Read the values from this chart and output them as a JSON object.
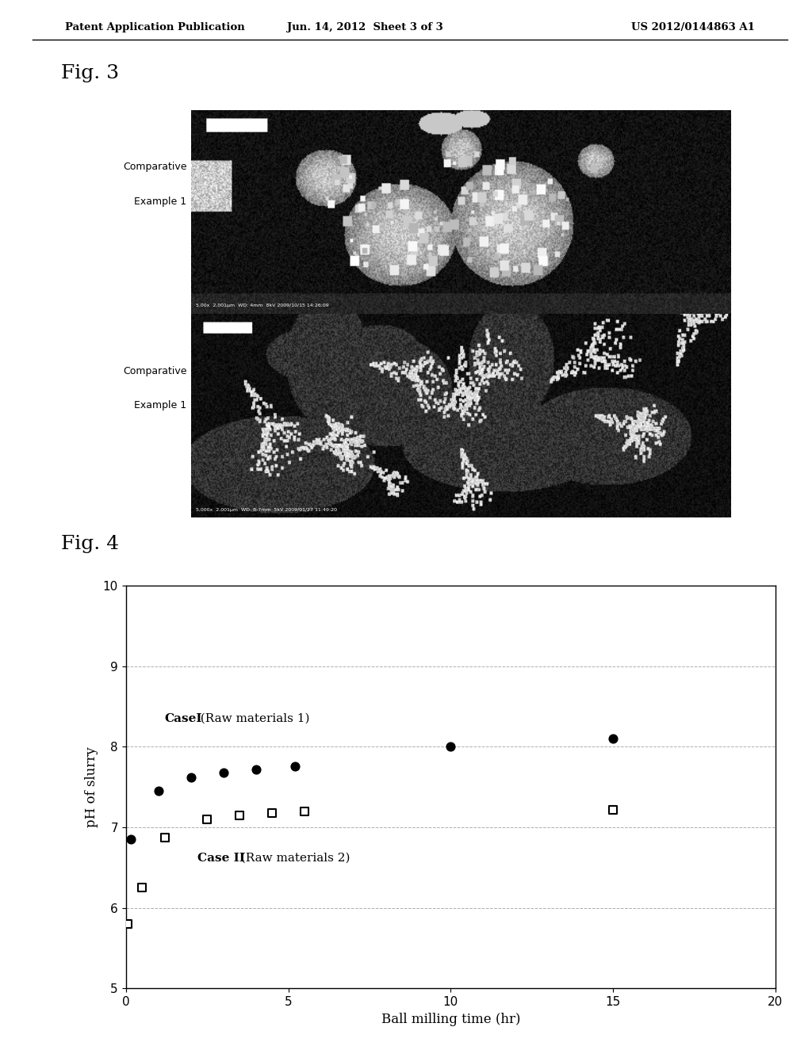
{
  "header_left": "Patent Application Publication",
  "header_mid": "Jun. 14, 2012  Sheet 3 of 3",
  "header_right": "US 2012/0144863 A1",
  "fig3_label": "Fig. 3",
  "fig4_label": "Fig. 4",
  "label1_line1": "Comparative",
  "label1_line2": "Example 1",
  "label2_line1": "Comparative",
  "label2_line2": "Example 1",
  "case1_label_bold": "CaseI",
  "case1_label_rest": "  (Raw materials 1)",
  "case2_label_bold": "Case II",
  "case2_label_rest": "  (Raw materials 2)",
  "xlabel": "Ball milling time (hr)",
  "ylabel": "pH of slurry",
  "xlim": [
    0,
    20
  ],
  "ylim": [
    5,
    10
  ],
  "xticks": [
    0,
    5,
    10,
    15,
    20
  ],
  "yticks": [
    5,
    6,
    7,
    8,
    9,
    10
  ],
  "case1_x": [
    0.15,
    1.0,
    2.0,
    3.0,
    4.0,
    5.2,
    10.0,
    15.0
  ],
  "case1_y": [
    6.85,
    7.45,
    7.62,
    7.68,
    7.72,
    7.76,
    8.0,
    8.1
  ],
  "case2_x": [
    0.05,
    0.5,
    1.2,
    2.5,
    3.5,
    4.5,
    5.5,
    15.0
  ],
  "case2_y": [
    5.8,
    6.25,
    6.87,
    7.1,
    7.15,
    7.18,
    7.2,
    7.22
  ],
  "bg_color": "#ffffff",
  "text_color": "#000000",
  "grid_color": "#999999"
}
